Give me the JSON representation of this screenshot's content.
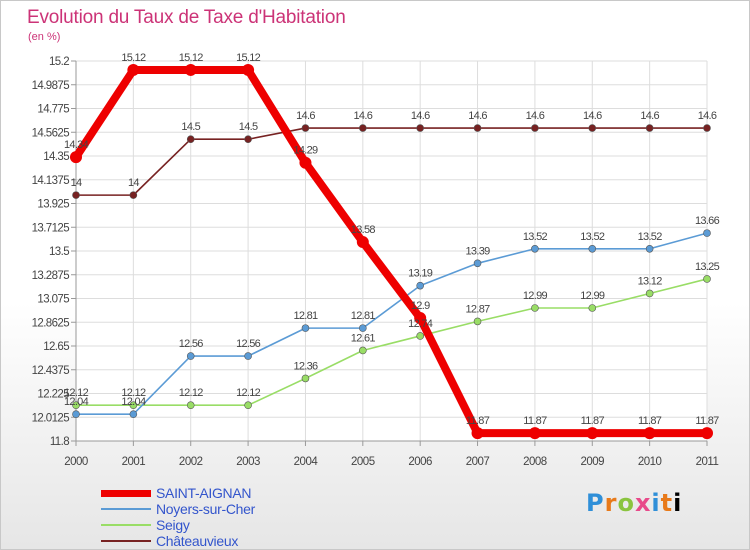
{
  "header": {
    "title": "Evolution du Taux de Taxe d'Habitation",
    "unit_label": "(en %)"
  },
  "logo_text": [
    "P",
    "r",
    "o",
    "x",
    "i",
    "t",
    "i"
  ],
  "chart_data": {
    "type": "line",
    "title": "Evolution du Taux de Taxe d'Habitation",
    "ylabel": "(en %)",
    "xlabel": "",
    "x": [
      "2000",
      "2001",
      "2002",
      "2003",
      "2004",
      "2005",
      "2006",
      "2007",
      "2008",
      "2009",
      "2010",
      "2011"
    ],
    "ylim": [
      11.8,
      15.2
    ],
    "yticks": [
      "15.2",
      "14.9875",
      "14.775",
      "14.5625",
      "14.35",
      "14.1375",
      "13.925",
      "13.7125",
      "13.5",
      "13.2875",
      "13.075",
      "12.8625",
      "12.65",
      "12.4375",
      "12.225",
      "12.0125",
      "11.8"
    ],
    "ytick_values": [
      15.2,
      14.9875,
      14.775,
      14.5625,
      14.35,
      14.1375,
      13.925,
      13.7125,
      13.5,
      13.2875,
      13.075,
      12.8625,
      12.65,
      12.4375,
      12.225,
      12.0125,
      11.8
    ],
    "grid": true,
    "legend_position": "bottom-left",
    "series": [
      {
        "name": "SAINT-AIGNAN",
        "color": "#ee0000",
        "values": [
          14.34,
          15.12,
          15.12,
          15.12,
          14.29,
          13.58,
          12.9,
          11.87,
          11.87,
          11.87,
          11.87,
          11.87
        ],
        "labels": [
          "14.34",
          "15.12",
          "15.12",
          "15.12",
          "14.29",
          "13.58",
          "12.9",
          "11.87",
          "11.87",
          "11.87",
          "11.87",
          "11.87"
        ]
      },
      {
        "name": "Noyers-sur-Cher",
        "color": "#5b9bd5",
        "values": [
          12.04,
          12.04,
          12.56,
          12.56,
          12.81,
          12.81,
          13.19,
          13.39,
          13.52,
          13.52,
          13.52,
          13.66
        ],
        "labels": [
          "12.04",
          "12.04",
          "12.56",
          "12.56",
          "12.81",
          "12.81",
          "13.19",
          "13.39",
          "13.52",
          "13.52",
          "13.52",
          "13.66"
        ]
      },
      {
        "name": "Seigy",
        "color": "#99dd66",
        "values": [
          12.12,
          12.12,
          12.12,
          12.12,
          12.36,
          12.61,
          12.74,
          12.87,
          12.99,
          12.99,
          13.12,
          13.25
        ],
        "labels": [
          "12.12",
          "12.12",
          "12.12",
          "12.12",
          "12.36",
          "12.61",
          "12.74",
          "12.87",
          "12.99",
          "12.99",
          "13.12",
          "13.25"
        ]
      },
      {
        "name": "Châteauvieux",
        "color": "#772222",
        "values": [
          14.0,
          14.0,
          14.5,
          14.5,
          14.6,
          14.6,
          14.6,
          14.6,
          14.6,
          14.6,
          14.6,
          14.6
        ],
        "labels": [
          "14",
          "14",
          "14.5",
          "14.5",
          "14.6",
          "14.6",
          "14.6",
          "14.6",
          "14.6",
          "14.6",
          "14.6",
          "14.6"
        ]
      }
    ]
  }
}
